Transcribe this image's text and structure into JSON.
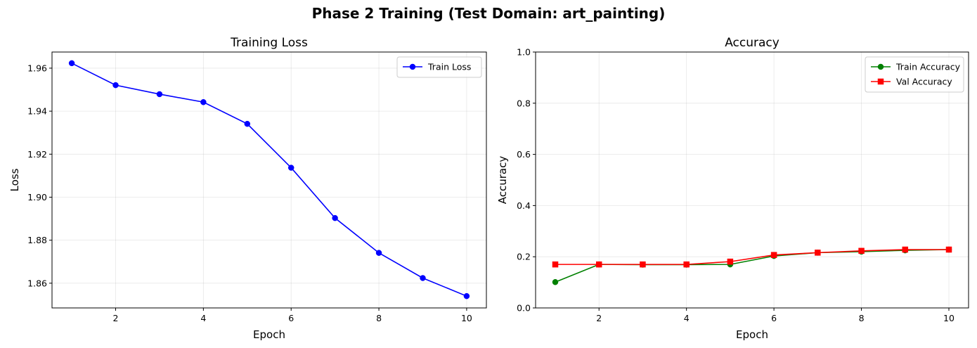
{
  "figure": {
    "suptitle": "Phase 2 Training (Test Domain: art_painting)"
  },
  "chart_data": [
    {
      "type": "line",
      "title": "Training Loss",
      "xlabel": "Epoch",
      "ylabel": "Loss",
      "x": [
        1,
        2,
        3,
        4,
        5,
        6,
        7,
        8,
        9,
        10
      ],
      "xlim": [
        0.55,
        10.45
      ],
      "ylim": [
        1.8485,
        1.9675
      ],
      "xticks": [
        2,
        4,
        6,
        8,
        10
      ],
      "yticks": [
        1.86,
        1.88,
        1.9,
        1.92,
        1.94,
        1.96
      ],
      "ytick_labels": [
        "1.86",
        "1.88",
        "1.90",
        "1.92",
        "1.94",
        "1.96"
      ],
      "grid": true,
      "legend_position": "upper right",
      "series": [
        {
          "name": "Train Loss",
          "color": "#0000ff",
          "marker": "circle",
          "values": [
            1.9623,
            1.9521,
            1.9479,
            1.9442,
            1.9341,
            1.9137,
            1.8903,
            1.8741,
            1.8624,
            1.854
          ]
        }
      ]
    },
    {
      "type": "line",
      "title": "Accuracy",
      "xlabel": "Epoch",
      "ylabel": "Accuracy",
      "x": [
        1,
        2,
        3,
        4,
        5,
        6,
        7,
        8,
        9,
        10
      ],
      "xlim": [
        0.55,
        10.45
      ],
      "ylim": [
        0,
        1
      ],
      "xticks": [
        2,
        4,
        6,
        8,
        10
      ],
      "yticks": [
        0.0,
        0.2,
        0.4,
        0.6,
        0.8,
        1.0
      ],
      "ytick_labels": [
        "0.0",
        "0.2",
        "0.4",
        "0.6",
        "0.8",
        "1.0"
      ],
      "grid": true,
      "legend_position": "upper right",
      "series": [
        {
          "name": "Train Accuracy",
          "color": "#008000",
          "marker": "circle",
          "values": [
            0.101,
            0.17,
            0.169,
            0.169,
            0.17,
            0.203,
            0.216,
            0.22,
            0.225,
            0.228
          ]
        },
        {
          "name": "Val Accuracy",
          "color": "#ff0000",
          "marker": "square",
          "values": [
            0.17,
            0.17,
            0.17,
            0.17,
            0.181,
            0.207,
            0.216,
            0.223,
            0.228,
            0.228
          ]
        }
      ]
    }
  ]
}
